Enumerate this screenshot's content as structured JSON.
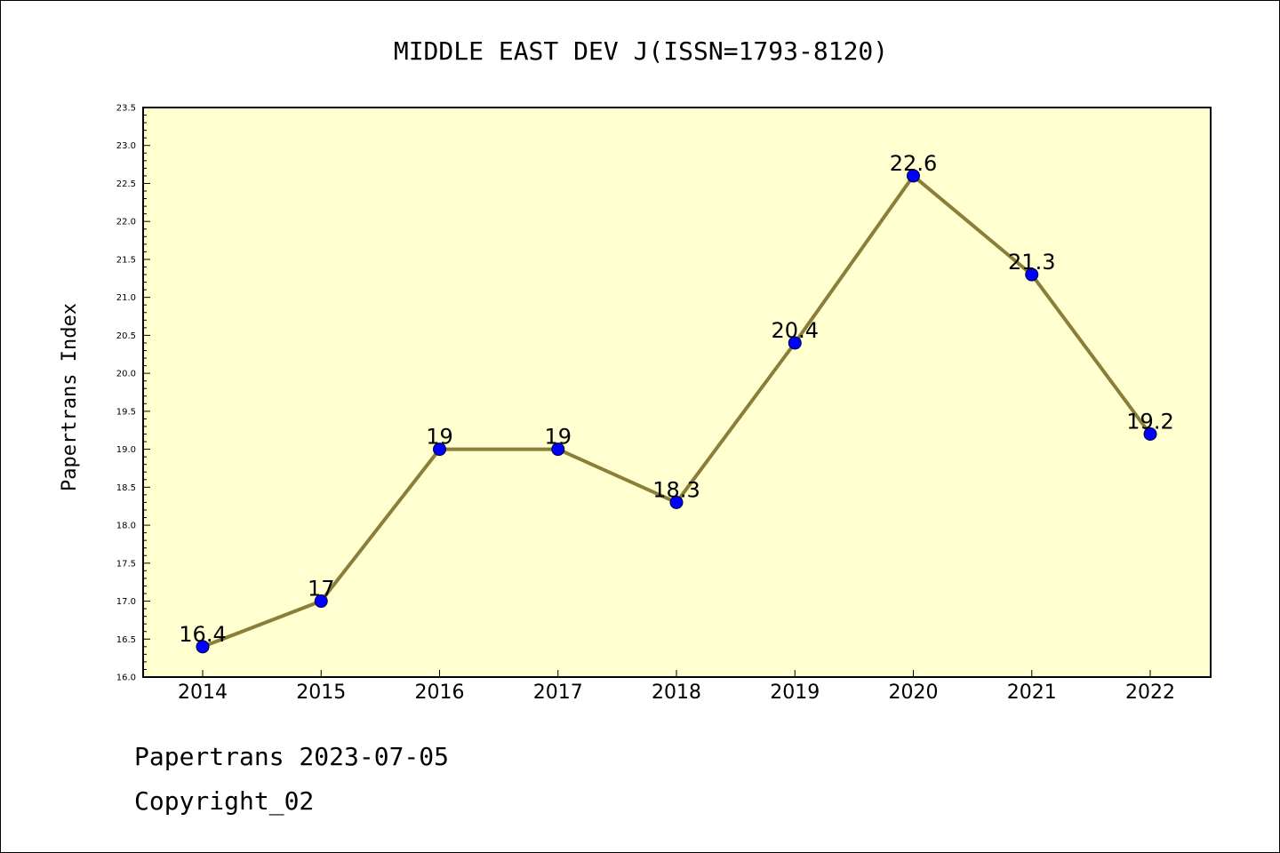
{
  "chart_data": {
    "type": "line",
    "title": "MIDDLE EAST DEV J(ISSN=1793-8120)",
    "ylabel": "Papertrans Index",
    "xlabel": "",
    "categories": [
      "2014",
      "2015",
      "2016",
      "2017",
      "2018",
      "2019",
      "2020",
      "2021",
      "2022"
    ],
    "values": [
      16.4,
      17,
      19,
      19,
      18.3,
      20.4,
      22.6,
      21.3,
      19.2
    ],
    "data_labels": [
      "16.4",
      "17",
      "19",
      "19",
      "18.3",
      "20.4",
      "22.6",
      "21.3",
      "19.2"
    ],
    "ylim": [
      16.0,
      23.5
    ],
    "yticks": [
      "16.0",
      "16.5",
      "17.0",
      "17.5",
      "18.0",
      "18.5",
      "19.0",
      "19.5",
      "20.0",
      "20.5",
      "21.0",
      "21.5",
      "22.0",
      "22.5",
      "23.0",
      "23.5"
    ],
    "grid": false,
    "legend": "none",
    "colors": {
      "plot_background": "#ffffd0",
      "line": "#8b7d3a",
      "marker": "#0000ff"
    }
  },
  "footer": {
    "line1": "Papertrans 2023-07-05",
    "line2": "Copyright_02"
  }
}
